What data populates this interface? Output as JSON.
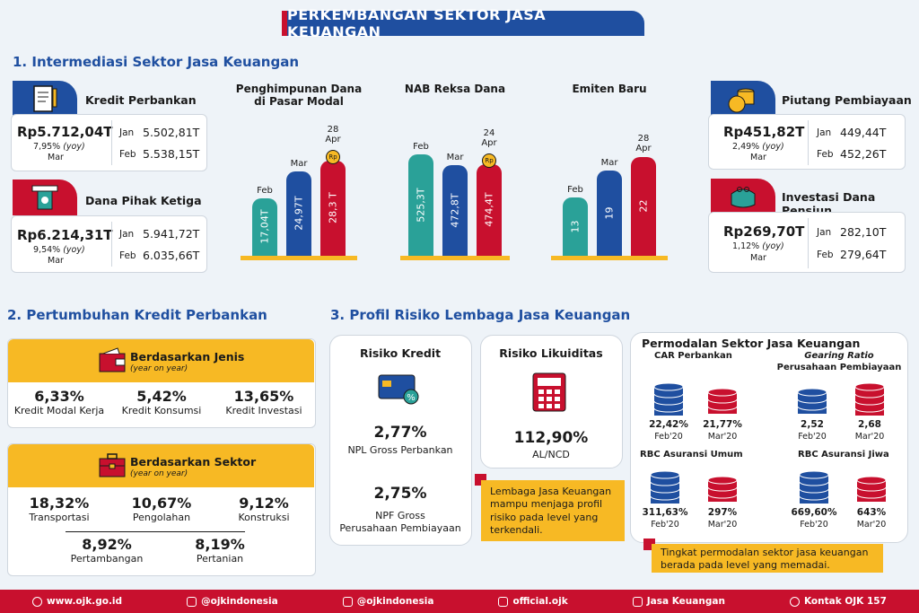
{
  "title": "PERKEMBANGAN SEKTOR JASA KEUANGAN",
  "s1": {
    "heading": "1. Intermediasi Sektor Jasa Keuangan",
    "kredit": {
      "label": "Kredit Perbankan",
      "value": "Rp5.712,04T",
      "yoy": "7,95%",
      "yoy_tag": "(yoy)",
      "month": "Mar",
      "jan_label": "Jan",
      "jan": "5.502,81T",
      "feb_label": "Feb",
      "feb": "5.538,15T"
    },
    "dpk": {
      "label": "Dana Pihak Ketiga",
      "value": "Rp6.214,31T",
      "yoy": "9,54%",
      "yoy_tag": "(yoy)",
      "month": "Mar",
      "jan_label": "Jan",
      "jan": "5.941,72T",
      "feb_label": "Feb",
      "feb": "6.035,66T"
    },
    "piutang": {
      "label": "Piutang Pembiayaan",
      "value": "Rp451,82T",
      "yoy": "2,49%",
      "yoy_tag": "(yoy)",
      "month": "Mar",
      "jan_label": "Jan",
      "jan": "449,44T",
      "feb_label": "Feb",
      "feb": "452,26T"
    },
    "pensiun": {
      "label": "Investasi Dana Pensiun",
      "value": "Rp269,70T",
      "yoy": "1,12%",
      "yoy_tag": "(yoy)",
      "month": "Mar",
      "jan_label": "Jan",
      "jan": "282,10T",
      "feb_label": "Feb",
      "feb": "279,64T"
    }
  },
  "chart_data": [
    {
      "type": "bar",
      "title": "Penghimpunan Dana di Pasar Modal",
      "categories": [
        "Feb",
        "Mar",
        "28 Apr"
      ],
      "values": [
        17.04,
        24.97,
        28.3
      ],
      "labels": [
        "17,04T",
        "24,97T",
        "28,3 T"
      ],
      "colors": [
        "#2aa198",
        "#1f4fa0",
        "#c8102e"
      ],
      "badge": "Rp",
      "max": 32
    },
    {
      "type": "bar",
      "title": "NAB Reksa Dana",
      "categories": [
        "Feb",
        "Mar",
        "24 Apr"
      ],
      "values": [
        525.3,
        472.8,
        474.4
      ],
      "labels": [
        "525,3T",
        "472,8T",
        "474,4T"
      ],
      "colors": [
        "#2aa198",
        "#1f4fa0",
        "#c8102e"
      ],
      "badge": "Rp",
      "max": 560
    },
    {
      "type": "bar",
      "title": "Emiten Baru",
      "categories": [
        "Feb",
        "Mar",
        "28 Apr"
      ],
      "values": [
        13,
        19,
        22
      ],
      "labels": [
        "13",
        "19",
        "22"
      ],
      "colors": [
        "#2aa198",
        "#1f4fa0",
        "#c8102e"
      ],
      "badge": "",
      "max": 24
    }
  ],
  "s2": {
    "heading": "2. Pertumbuhan Kredit Perbankan",
    "jenis": {
      "title": "Berdasarkan Jenis",
      "sub": "(year on year)",
      "items": [
        {
          "pct": "6,33%",
          "label": "Kredit Modal Kerja"
        },
        {
          "pct": "5,42%",
          "label": "Kredit Konsumsi"
        },
        {
          "pct": "13,65%",
          "label": "Kredit Investasi"
        }
      ]
    },
    "sektor": {
      "title": "Berdasarkan Sektor",
      "sub": "(year on year)",
      "items": [
        {
          "pct": "18,32%",
          "label": "Transportasi"
        },
        {
          "pct": "10,67%",
          "label": "Pengolahan"
        },
        {
          "pct": "9,12%",
          "label": "Konstruksi"
        },
        {
          "pct": "8,92%",
          "label": "Pertambangan"
        },
        {
          "pct": "8,19%",
          "label": "Pertanian"
        }
      ]
    }
  },
  "s3": {
    "heading": "3. Profil Risiko Lembaga Jasa Keuangan",
    "kredit": {
      "title": "Risiko Kredit",
      "v1": "2,77%",
      "l1": "NPL Gross Perbankan",
      "v2": "2,75%",
      "l2a": "NPF Gross",
      "l2b": "Perusahaan Pembiayaan"
    },
    "likuid": {
      "title": "Risiko Likuiditas",
      "v": "112,90%",
      "l": "AL/NCD"
    },
    "note1": "Lembaga Jasa Keuangan mampu menjaga profil risiko pada level yang terkendali.",
    "permodalan": {
      "title": "Permodalan Sektor Jasa Keuangan",
      "car": {
        "title": "CAR Perbankan",
        "a": "22,42%",
        "a_m": "Feb'20",
        "b": "21,77%",
        "b_m": "Mar'20"
      },
      "gr": {
        "title1": "Gearing Ratio",
        "title2": "Perusahaan Pembiayaan",
        "a": "2,52",
        "a_m": "Feb'20",
        "b": "2,68",
        "b_m": "Mar'20"
      },
      "rbcu": {
        "title": "RBC Asuransi Umum",
        "a": "311,63%",
        "a_m": "Feb'20",
        "b": "297%",
        "b_m": "Mar'20"
      },
      "rbcj": {
        "title": "RBC Asuransi Jiwa",
        "a": "669,60%",
        "a_m": "Feb'20",
        "b": "643%",
        "b_m": "Mar'20"
      }
    },
    "note2": "Tingkat permodalan sektor jasa keuangan berada pada level yang memadai."
  },
  "footer": [
    {
      "icon": "globe-icon",
      "text": "www.ojk.go.id"
    },
    {
      "icon": "facebook-icon",
      "text": "@ojkindonesia"
    },
    {
      "icon": "instagram-icon",
      "text": "@ojkindonesia"
    },
    {
      "icon": "twitter-icon",
      "text": "official.ojk"
    },
    {
      "icon": "youtube-icon",
      "text": "Jasa Keuangan"
    },
    {
      "icon": "phone-icon",
      "text": "Kontak OJK 157"
    }
  ]
}
